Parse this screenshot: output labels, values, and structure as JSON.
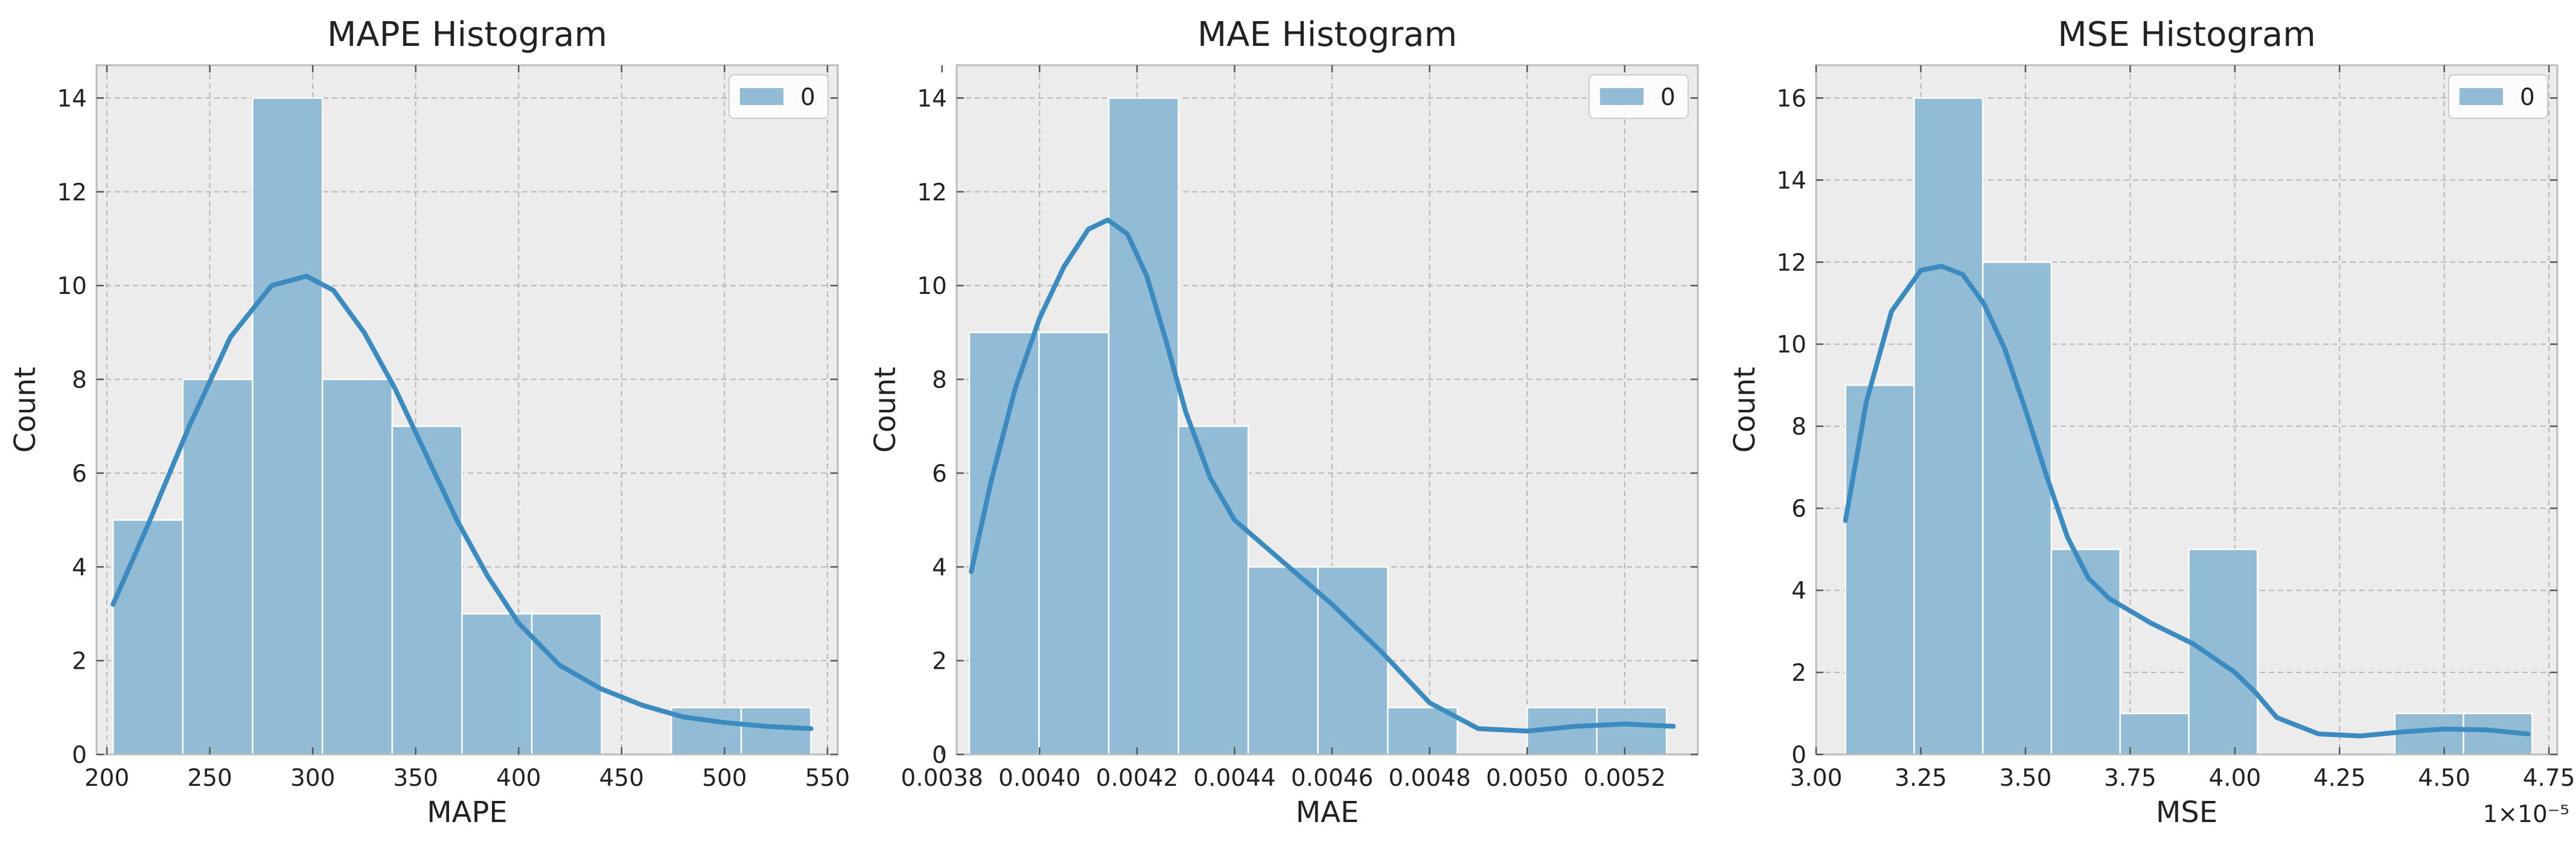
{
  "chart_data": [
    {
      "type": "bar",
      "title": "MAPE Histogram",
      "xlabel": "MAPE",
      "ylabel": "Count",
      "xlim": [
        195,
        555
      ],
      "ylim": [
        0,
        14.7
      ],
      "xticks": [
        200,
        250,
        300,
        350,
        400,
        450,
        500,
        550
      ],
      "xtick_labels": [
        "200",
        "250",
        "300",
        "350",
        "400",
        "450",
        "500",
        "550"
      ],
      "yticks": [
        0,
        2,
        4,
        6,
        8,
        10,
        12,
        14
      ],
      "ytick_labels": [
        "0",
        "2",
        "4",
        "6",
        "8",
        "10",
        "12",
        "14"
      ],
      "bin_edges": [
        203,
        236.9,
        270.8,
        304.7,
        338.6,
        372.5,
        406.4,
        440.3,
        474.2,
        508.1,
        542
      ],
      "counts": [
        5,
        8,
        14,
        8,
        7,
        3,
        3,
        0,
        1,
        1
      ],
      "kde": {
        "x": [
          203,
          220,
          240,
          260,
          280,
          297,
          310,
          325,
          340,
          355,
          370,
          385,
          400,
          420,
          440,
          460,
          480,
          500,
          520,
          542
        ],
        "y": [
          3.2,
          4.9,
          7.0,
          8.9,
          10.0,
          10.2,
          9.9,
          9.0,
          7.8,
          6.4,
          5.0,
          3.8,
          2.8,
          1.9,
          1.4,
          1.05,
          0.8,
          0.68,
          0.6,
          0.55
        ]
      },
      "legend": [
        "0"
      ],
      "legend_position": "top-right",
      "grid": true,
      "offset_text": ""
    },
    {
      "type": "bar",
      "title": "MAE Histogram",
      "xlabel": "MAE",
      "ylabel": "Count",
      "xlim": [
        0.00383,
        0.00535
      ],
      "ylim": [
        0,
        14.7
      ],
      "xticks": [
        0.0038,
        0.004,
        0.0042,
        0.0044,
        0.0046,
        0.0048,
        0.005,
        0.0052
      ],
      "xtick_labels": [
        "0.0038",
        "0.0040",
        "0.0042",
        "0.0044",
        "0.0046",
        "0.0048",
        "0.0050",
        "0.0052"
      ],
      "yticks": [
        0,
        2,
        4,
        6,
        8,
        10,
        12,
        14
      ],
      "ytick_labels": [
        "0",
        "2",
        "4",
        "6",
        "8",
        "10",
        "12",
        "14"
      ],
      "bin_edges": [
        0.003856,
        0.003999,
        0.004142,
        0.004285,
        0.004428,
        0.004571,
        0.004714,
        0.004857,
        0.005,
        0.005143,
        0.005286
      ],
      "counts": [
        9,
        9,
        14,
        7,
        4,
        4,
        1,
        0,
        1,
        1
      ],
      "kde": {
        "x": [
          0.00386,
          0.0039,
          0.00395,
          0.004,
          0.00405,
          0.0041,
          0.00414,
          0.00418,
          0.00422,
          0.00426,
          0.0043,
          0.00435,
          0.0044,
          0.0045,
          0.0046,
          0.0047,
          0.0048,
          0.0049,
          0.005,
          0.0051,
          0.0052,
          0.0053
        ],
        "y": [
          3.9,
          5.8,
          7.8,
          9.3,
          10.4,
          11.2,
          11.4,
          11.1,
          10.2,
          8.8,
          7.3,
          5.9,
          5.0,
          4.1,
          3.2,
          2.2,
          1.1,
          0.55,
          0.5,
          0.6,
          0.65,
          0.6
        ]
      },
      "legend": [
        "0"
      ],
      "legend_position": "top-right",
      "grid": true,
      "offset_text": ""
    },
    {
      "type": "bar",
      "title": "MSE Histogram",
      "xlabel": "MSE",
      "ylabel": "Count",
      "xlim": [
        3.0,
        4.77
      ],
      "ylim": [
        0,
        16.8
      ],
      "xticks": [
        3.0,
        3.25,
        3.5,
        3.75,
        4.0,
        4.25,
        4.5,
        4.75
      ],
      "xtick_labels": [
        "3.00",
        "3.25",
        "3.50",
        "3.75",
        "4.00",
        "4.25",
        "4.50",
        "4.75"
      ],
      "yticks": [
        0,
        2,
        4,
        6,
        8,
        10,
        12,
        14,
        16
      ],
      "ytick_labels": [
        "0",
        "2",
        "4",
        "6",
        "8",
        "10",
        "12",
        "14",
        "16"
      ],
      "bin_edges": [
        3.07,
        3.234,
        3.398,
        3.562,
        3.726,
        3.89,
        4.054,
        4.218,
        4.382,
        4.546,
        4.71
      ],
      "counts": [
        9,
        16,
        12,
        5,
        1,
        5,
        0,
        0,
        1,
        1
      ],
      "kde": {
        "x": [
          3.07,
          3.12,
          3.18,
          3.25,
          3.3,
          3.35,
          3.4,
          3.45,
          3.5,
          3.55,
          3.6,
          3.65,
          3.7,
          3.8,
          3.9,
          4.0,
          4.05,
          4.1,
          4.2,
          4.3,
          4.4,
          4.5,
          4.6,
          4.7
        ],
        "y": [
          5.7,
          8.6,
          10.8,
          11.8,
          11.9,
          11.7,
          11.0,
          9.9,
          8.4,
          6.8,
          5.3,
          4.3,
          3.8,
          3.2,
          2.7,
          2.0,
          1.5,
          0.9,
          0.5,
          0.45,
          0.55,
          0.62,
          0.6,
          0.5
        ]
      },
      "legend": [
        "0"
      ],
      "legend_position": "top-right",
      "grid": true,
      "offset_text": "1×10⁻⁵"
    }
  ],
  "colors": {
    "bar": "#92bbd6",
    "kde": "#3c8bc0",
    "background": "#ececec",
    "grid": "#b5b5b5",
    "frame": "#bcbcbc"
  }
}
